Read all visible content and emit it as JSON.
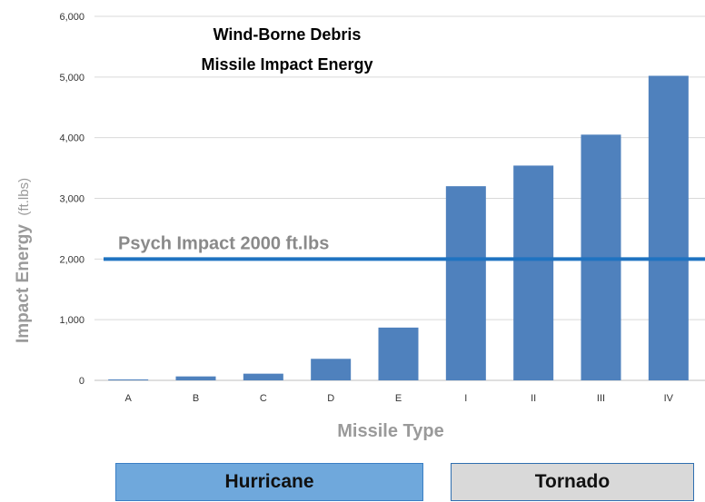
{
  "chart_data": {
    "type": "bar",
    "title_lines": [
      "Wind-Borne Debris",
      "Missile Impact Energy"
    ],
    "xlabel": "Missile Type",
    "ylabel": "Impact Energy",
    "ylabel_unit": "(ft.lbs)",
    "categories": [
      "A",
      "B",
      "C",
      "D",
      "E",
      "I",
      "II",
      "III",
      "IV"
    ],
    "values": [
      15,
      65,
      110,
      355,
      870,
      3200,
      3540,
      4050,
      5020
    ],
    "ylim": [
      0,
      6000
    ],
    "yticks": [
      0,
      1000,
      2000,
      3000,
      4000,
      5000,
      6000
    ],
    "ytick_labels": [
      "0",
      "1,000",
      "2,000",
      "3,000",
      "4,000",
      "5,000",
      "6,000"
    ],
    "grid": true,
    "bar_color": "#4f81bd",
    "reference_line": {
      "value": 2000,
      "label": "Psych Impact 2000 ft.lbs",
      "color": "#1f73c1"
    },
    "groups": [
      {
        "label": "Hurricane",
        "categories": [
          "A",
          "B",
          "C",
          "D",
          "E"
        ],
        "color": "#6fa8dc"
      },
      {
        "label": "Tornado",
        "categories": [
          "I",
          "II",
          "III",
          "IV"
        ],
        "color": "#d9d9d9"
      }
    ]
  }
}
